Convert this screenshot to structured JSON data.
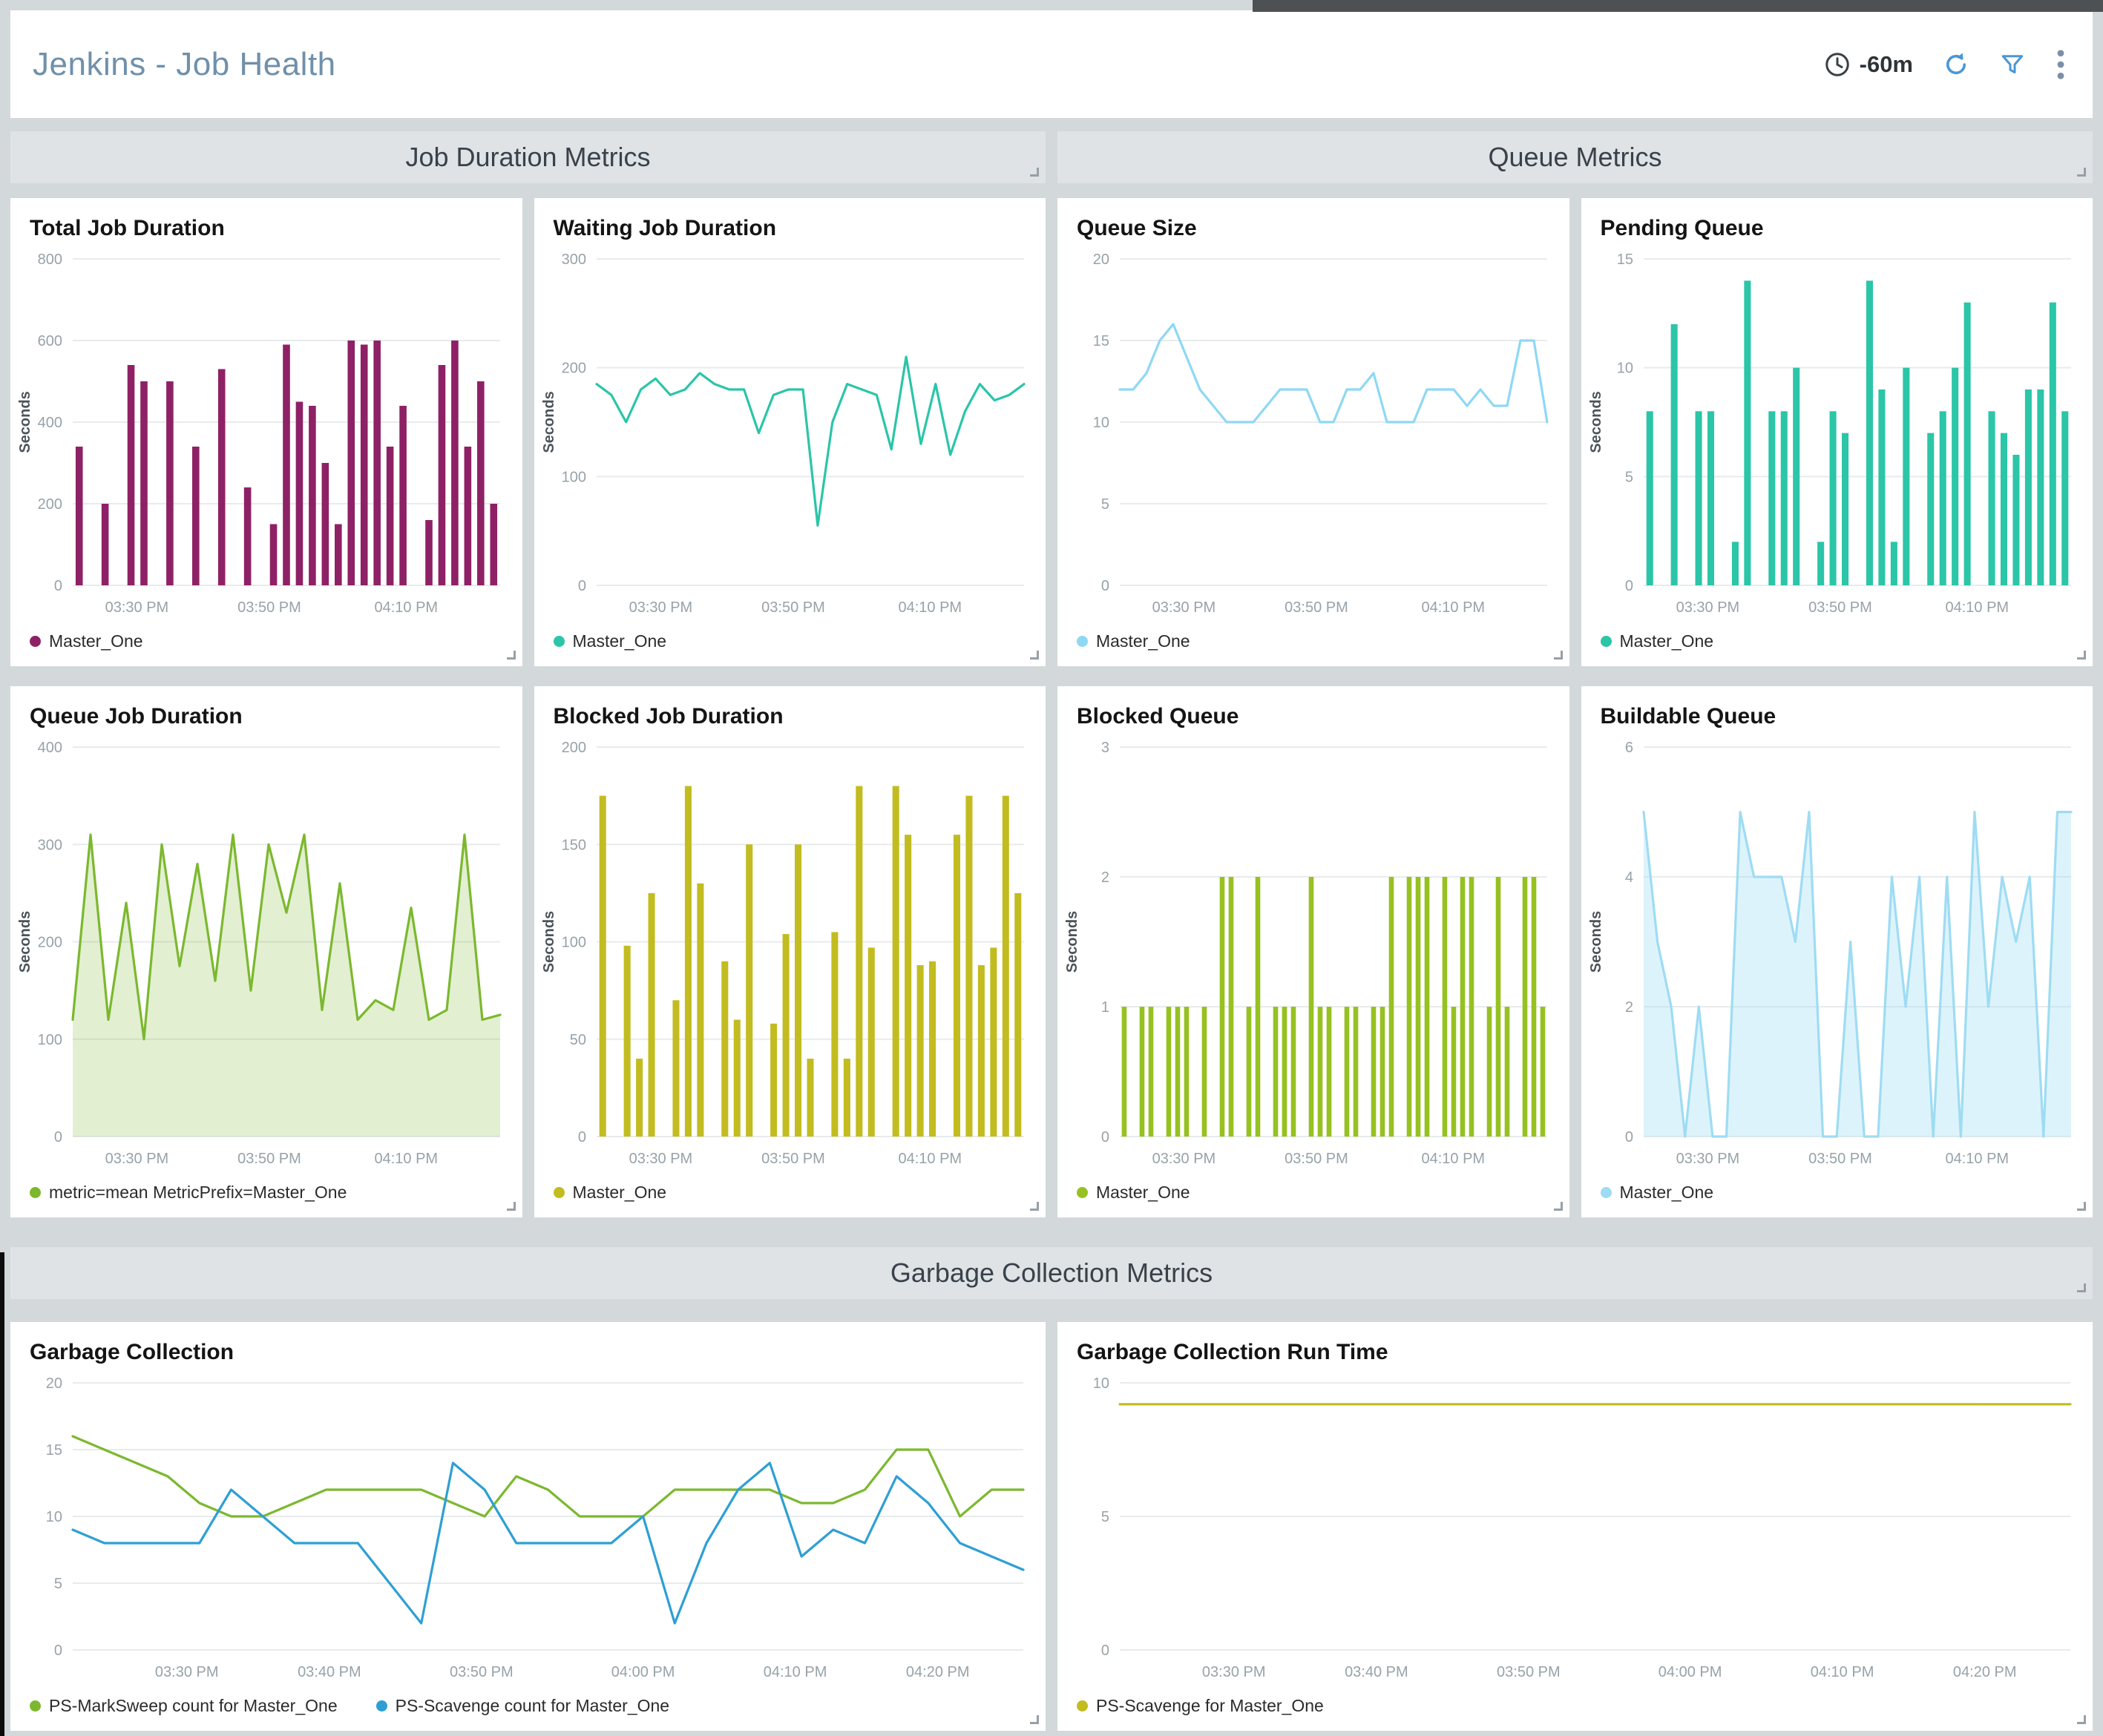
{
  "header": {
    "title": "Jenkins - Job Health",
    "time_range": "-60m",
    "icons": [
      "clock-icon",
      "refresh-icon",
      "filter-icon",
      "kebab-menu-icon"
    ]
  },
  "sections": [
    {
      "label": "Job Duration Metrics"
    },
    {
      "label": "Queue Metrics"
    },
    {
      "label": "Garbage Collection Metrics"
    }
  ],
  "colors": {
    "purple": "#8e2166",
    "teal": "#2bc5a8",
    "sky_line": "#8ed8f4",
    "green": "#7cb82f",
    "yellow": "#c2bc20",
    "lime": "#96c121",
    "pale_blue": "#9edcf3",
    "blue": "#2e9fd4",
    "accent_blue": "#4a97d6"
  },
  "panels": [
    {
      "title": "Total Job Duration",
      "legend": [
        {
          "label": "Master_One",
          "color": "#8e2166"
        }
      ],
      "chart_data": {
        "type": "bar",
        "color": "#8e2166",
        "ylabel": "Seconds",
        "ylim": [
          0,
          800
        ],
        "yticks": [
          0,
          200,
          400,
          600,
          800
        ],
        "xticks": [
          "03:30 PM",
          "03:50 PM",
          "04:10 PM"
        ],
        "xtick_pos": [
          0.15,
          0.46,
          0.78
        ],
        "values": [
          340,
          0,
          200,
          0,
          540,
          500,
          0,
          500,
          0,
          340,
          0,
          530,
          0,
          240,
          0,
          150,
          590,
          450,
          440,
          300,
          150,
          600,
          590,
          600,
          340,
          440,
          0,
          160,
          540,
          600,
          340,
          500,
          200
        ]
      }
    },
    {
      "title": "Waiting Job Duration",
      "legend": [
        {
          "label": "Master_One",
          "color": "#2bc5a8"
        }
      ],
      "chart_data": {
        "type": "line",
        "color": "#2bc5a8",
        "ylabel": "Seconds",
        "ylim": [
          0,
          300
        ],
        "yticks": [
          0,
          100,
          200,
          300
        ],
        "xticks": [
          "03:30 PM",
          "03:50 PM",
          "04:10 PM"
        ],
        "xtick_pos": [
          0.15,
          0.46,
          0.78
        ],
        "values": [
          185,
          175,
          150,
          180,
          190,
          175,
          180,
          195,
          185,
          180,
          180,
          140,
          175,
          180,
          180,
          55,
          150,
          185,
          180,
          175,
          125,
          210,
          130,
          185,
          120,
          160,
          185,
          170,
          175,
          185
        ]
      }
    },
    {
      "title": "Queue Size",
      "legend": [
        {
          "label": "Master_One",
          "color": "#8ed8f4"
        }
      ],
      "chart_data": {
        "type": "line",
        "color": "#8ed8f4",
        "ylabel": "",
        "ylim": [
          0,
          20
        ],
        "yticks": [
          0,
          5,
          10,
          15,
          20
        ],
        "xticks": [
          "03:30 PM",
          "03:50 PM",
          "04:10 PM"
        ],
        "xtick_pos": [
          0.15,
          0.46,
          0.78
        ],
        "values": [
          12,
          12,
          13,
          15,
          16,
          14,
          12,
          11,
          10,
          10,
          10,
          11,
          12,
          12,
          12,
          10,
          10,
          12,
          12,
          13,
          10,
          10,
          10,
          12,
          12,
          12,
          11,
          12,
          11,
          11,
          15,
          15,
          10
        ]
      }
    },
    {
      "title": "Pending Queue",
      "legend": [
        {
          "label": "Master_One",
          "color": "#2bc5a8"
        }
      ],
      "chart_data": {
        "type": "bar",
        "color": "#2bc5a8",
        "ylabel": "Seconds",
        "ylim": [
          0,
          15
        ],
        "yticks": [
          0,
          5,
          10,
          15
        ],
        "xticks": [
          "03:30 PM",
          "03:50 PM",
          "04:10 PM"
        ],
        "xtick_pos": [
          0.15,
          0.46,
          0.78
        ],
        "values": [
          8,
          0,
          12,
          0,
          8,
          8,
          0,
          2,
          14,
          0,
          8,
          8,
          10,
          0,
          2,
          8,
          7,
          0,
          14,
          9,
          2,
          10,
          0,
          7,
          8,
          10,
          13,
          0,
          8,
          7,
          6,
          9,
          9,
          13,
          8
        ]
      }
    },
    {
      "title": "Queue Job Duration",
      "legend": [
        {
          "label": "metric=mean MetricPrefix=Master_One",
          "color": "#7cb82f"
        }
      ],
      "chart_data": {
        "type": "area",
        "color": "#7cb82f",
        "fill": "rgba(124,184,47,0.22)",
        "ylabel": "Seconds",
        "ylim": [
          0,
          400
        ],
        "yticks": [
          0,
          100,
          200,
          300,
          400
        ],
        "xticks": [
          "03:30 PM",
          "03:50 PM",
          "04:10 PM"
        ],
        "xtick_pos": [
          0.15,
          0.46,
          0.78
        ],
        "values": [
          120,
          310,
          120,
          240,
          100,
          300,
          175,
          280,
          160,
          310,
          150,
          300,
          230,
          310,
          130,
          260,
          120,
          140,
          130,
          235,
          120,
          130,
          310,
          120,
          125
        ]
      }
    },
    {
      "title": "Blocked Job Duration",
      "legend": [
        {
          "label": "Master_One",
          "color": "#c2bc20"
        }
      ],
      "chart_data": {
        "type": "bar",
        "color": "#c2bc20",
        "ylabel": "Seconds",
        "ylim": [
          0,
          200
        ],
        "yticks": [
          0,
          50,
          100,
          150,
          200
        ],
        "xticks": [
          "03:30 PM",
          "03:50 PM",
          "04:10 PM"
        ],
        "xtick_pos": [
          0.15,
          0.46,
          0.78
        ],
        "values": [
          175,
          0,
          98,
          40,
          125,
          0,
          70,
          180,
          130,
          0,
          90,
          60,
          150,
          0,
          58,
          104,
          150,
          40,
          0,
          105,
          40,
          180,
          97,
          0,
          180,
          155,
          88,
          90,
          0,
          155,
          175,
          88,
          97,
          175,
          125
        ]
      }
    },
    {
      "title": "Blocked Queue",
      "legend": [
        {
          "label": "Master_One",
          "color": "#96c121"
        }
      ],
      "chart_data": {
        "type": "bar",
        "color": "#96c121",
        "ylabel": "Seconds",
        "ylim": [
          0,
          3
        ],
        "yticks": [
          0,
          1,
          2,
          3
        ],
        "xticks": [
          "03:30 PM",
          "03:50 PM",
          "04:10 PM"
        ],
        "xtick_pos": [
          0.15,
          0.46,
          0.78
        ],
        "values": [
          1,
          0,
          1,
          1,
          0,
          1,
          1,
          1,
          0,
          1,
          0,
          2,
          2,
          0,
          1,
          2,
          0,
          1,
          1,
          1,
          0,
          2,
          1,
          1,
          0,
          1,
          1,
          0,
          1,
          1,
          2,
          0,
          2,
          2,
          2,
          0,
          2,
          1,
          2,
          2,
          0,
          1,
          2,
          1,
          0,
          2,
          2,
          1
        ]
      }
    },
    {
      "title": "Buildable Queue",
      "legend": [
        {
          "label": "Master_One",
          "color": "#9edcf3"
        }
      ],
      "chart_data": {
        "type": "area",
        "color": "#9edcf3",
        "fill": "rgba(158,220,243,0.35)",
        "ylabel": "Seconds",
        "ylim": [
          0,
          6
        ],
        "yticks": [
          0,
          2,
          4,
          6
        ],
        "xticks": [
          "03:30 PM",
          "03:50 PM",
          "04:10 PM"
        ],
        "xtick_pos": [
          0.15,
          0.46,
          0.78
        ],
        "values": [
          5,
          3,
          2,
          0,
          2,
          0,
          0,
          5,
          4,
          4,
          4,
          3,
          5,
          0,
          0,
          3,
          0,
          0,
          4,
          2,
          4,
          0,
          4,
          0,
          5,
          2,
          4,
          3,
          4,
          0,
          5,
          5
        ]
      }
    },
    {
      "title": "Garbage Collection",
      "legend": [
        {
          "label": "PS-MarkSweep count for Master_One",
          "color": "#7cb82f"
        },
        {
          "label": "PS-Scavenge count for Master_One",
          "color": "#2e9fd4"
        }
      ],
      "chart_data": {
        "type": "line",
        "ylabel": "",
        "ylim": [
          0,
          20
        ],
        "yticks": [
          0,
          5,
          10,
          15,
          20
        ],
        "xticks": [
          "03:30 PM",
          "03:40 PM",
          "03:50 PM",
          "04:00 PM",
          "04:10 PM",
          "04:20 PM"
        ],
        "xtick_pos": [
          0.12,
          0.27,
          0.43,
          0.6,
          0.76,
          0.91
        ],
        "series": [
          {
            "name": "PS-MarkSweep count for Master_One",
            "color": "#7cb82f",
            "values": [
              16,
              15,
              14,
              13,
              11,
              10,
              10,
              11,
              12,
              12,
              12,
              12,
              11,
              10,
              13,
              12,
              10,
              10,
              10,
              12,
              12,
              12,
              12,
              11,
              11,
              12,
              15,
              15,
              10,
              12,
              12
            ]
          },
          {
            "name": "PS-Scavenge count for Master_One",
            "color": "#2e9fd4",
            "values": [
              9,
              8,
              8,
              8,
              8,
              12,
              10,
              8,
              8,
              8,
              5,
              2,
              14,
              12,
              8,
              8,
              8,
              8,
              10,
              2,
              8,
              12,
              14,
              7,
              9,
              8,
              13,
              11,
              8,
              7,
              6
            ]
          }
        ]
      }
    },
    {
      "title": "Garbage Collection Run Time",
      "legend": [
        {
          "label": "PS-Scavenge for Master_One",
          "color": "#c2bc20"
        }
      ],
      "chart_data": {
        "type": "line",
        "color": "#c2bc20",
        "ylabel": "",
        "ylim": [
          0,
          10
        ],
        "yticks": [
          0,
          5,
          10
        ],
        "xticks": [
          "03:30 PM",
          "03:40 PM",
          "03:50 PM",
          "04:00 PM",
          "04:10 PM",
          "04:20 PM"
        ],
        "xtick_pos": [
          0.12,
          0.27,
          0.43,
          0.6,
          0.76,
          0.91
        ],
        "values": [
          9.2,
          9.2,
          9.2,
          9.2,
          9.2,
          9.2,
          9.2,
          9.2,
          9.2,
          9.2,
          9.2,
          9.2,
          9.2,
          9.2,
          9.2,
          9.2,
          9.2,
          9.2,
          9.2,
          9.2,
          9.2,
          9.2,
          9.2,
          9.2,
          9.2,
          9.2,
          9.2,
          9.2,
          9.2,
          9.2
        ]
      }
    }
  ]
}
